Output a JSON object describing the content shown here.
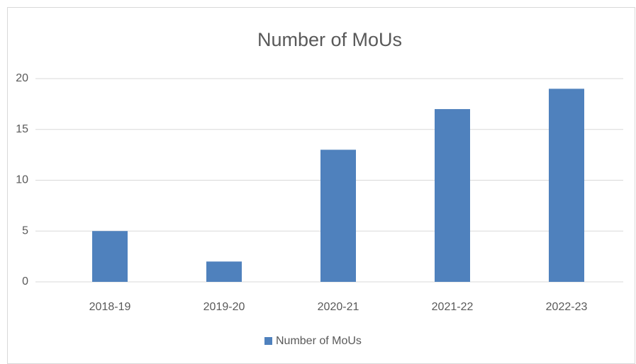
{
  "chart_data": {
    "type": "bar",
    "title": "Number of MoUs",
    "categories": [
      "2018-19",
      "2019-20",
      "2020-21",
      "2021-22",
      "2022-23"
    ],
    "series": [
      {
        "name": "Number of MoUs",
        "color": "#4f81bd",
        "values": [
          5,
          2,
          13,
          17,
          19
        ]
      }
    ],
    "ylim": [
      0,
      20
    ],
    "yticks": [
      0,
      5,
      10,
      15,
      20
    ],
    "grid": true,
    "legend": "bottom"
  }
}
